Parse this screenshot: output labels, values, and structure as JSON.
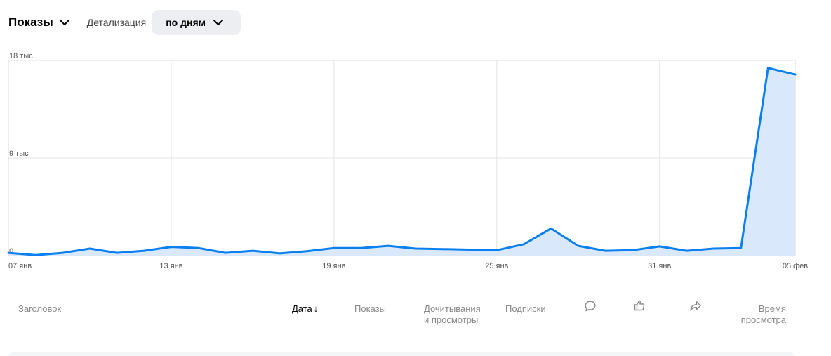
{
  "toolbar": {
    "metric_label": "Показы",
    "detail_label": "Детализация",
    "detail_value": "по дням"
  },
  "chart_data": {
    "type": "area",
    "title": "",
    "xlabel": "",
    "ylabel": "",
    "ylim": [
      0,
      18000
    ],
    "y_ticks": [
      {
        "value": 0,
        "label": "0"
      },
      {
        "value": 9000,
        "label": "9 тыс"
      },
      {
        "value": 18000,
        "label": "18 тыс"
      }
    ],
    "x_tick_labels": [
      "07 янв",
      "13 янв",
      "19 янв",
      "25 янв",
      "31 янв",
      "05 фев"
    ],
    "x": [
      "07 янв",
      "08 янв",
      "09 янв",
      "10 янв",
      "11 янв",
      "12 янв",
      "13 янв",
      "14 янв",
      "15 янв",
      "16 янв",
      "17 янв",
      "18 янв",
      "19 янв",
      "20 янв",
      "21 янв",
      "22 янв",
      "23 янв",
      "24 янв",
      "25 янв",
      "26 янв",
      "27 янв",
      "28 янв",
      "29 янв",
      "30 янв",
      "31 янв",
      "01 фев",
      "02 фев",
      "03 фев",
      "04 фев",
      "05 фев"
    ],
    "series": [
      {
        "values": [
          250,
          50,
          250,
          650,
          250,
          450,
          800,
          700,
          250,
          450,
          200,
          400,
          700,
          700,
          900,
          650,
          600,
          550,
          500,
          1050,
          2500,
          900,
          450,
          500,
          850,
          450,
          650,
          700,
          17300,
          16700
        ],
        "color": "#0a7ff0",
        "fill": "#d9e9fb"
      }
    ],
    "grid": true,
    "legend": "none"
  },
  "table": {
    "columns": {
      "title": "Заголовок",
      "date": "Дата",
      "date_sort": "↓",
      "impressions": "Показы",
      "reads_line1": "Дочитывания",
      "reads_line2": "и просмотры",
      "subscriptions": "Подписки",
      "watch_line1": "Время",
      "watch_line2": "просмотра"
    },
    "icons": {
      "comments": "comment-icon",
      "likes": "like-icon",
      "shares": "share-icon"
    }
  }
}
